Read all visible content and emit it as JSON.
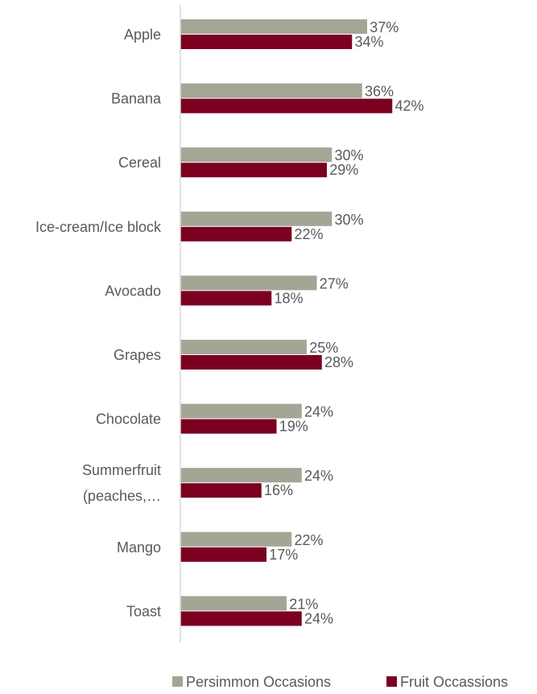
{
  "chart_data": {
    "type": "bar",
    "orientation": "horizontal",
    "categories": [
      [
        "Apple"
      ],
      [
        "Banana"
      ],
      [
        "Cereal"
      ],
      [
        "Ice-cream/Ice block"
      ],
      [
        "Avocado"
      ],
      [
        "Grapes"
      ],
      [
        "Chocolate"
      ],
      [
        "Summerfruit",
        "(peaches,…"
      ],
      [
        "Mango"
      ],
      [
        "Toast"
      ]
    ],
    "series": [
      {
        "name": "Persimmon Occasions",
        "color": "#a5a596",
        "values": [
          37,
          36,
          30,
          30,
          27,
          25,
          24,
          24,
          22,
          21
        ],
        "labels": [
          "37%",
          "36%",
          "30%",
          "30%",
          "27%",
          "25%",
          "24%",
          "24%",
          "22%",
          "21%"
        ]
      },
      {
        "name": "Fruit Occassions",
        "color": "#7b0020",
        "values": [
          34,
          42,
          29,
          22,
          18,
          28,
          19,
          16,
          17,
          24
        ],
        "labels": [
          "34%",
          "42%",
          "29%",
          "22%",
          "18%",
          "28%",
          "19%",
          "16%",
          "17%",
          "24%"
        ]
      }
    ],
    "xlim": [
      0,
      60
    ],
    "grid": false,
    "axis_line": true,
    "legend": "bottom"
  }
}
